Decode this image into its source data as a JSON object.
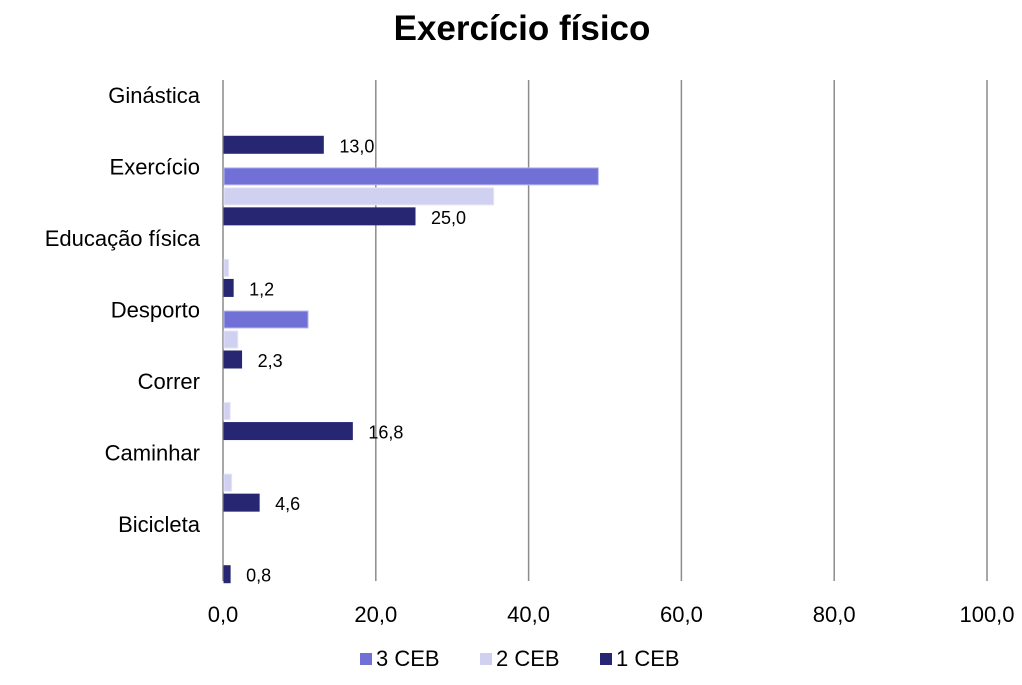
{
  "chart_data": {
    "type": "bar",
    "orientation": "horizontal",
    "title": "Exercício físico",
    "xlabel": "",
    "ylabel": "",
    "xlim": [
      0,
      100
    ],
    "x_ticks": [
      0,
      20,
      40,
      60,
      80,
      100
    ],
    "x_tick_labels": [
      "0,0",
      "20,0",
      "40,0",
      "60,0",
      "80,0",
      "100,0"
    ],
    "grid": true,
    "legend_position": "bottom",
    "categories": [
      "Ginástica",
      "Exercício",
      "Educação física",
      "Desporto",
      "Correr",
      "Caminhar",
      "Bicicleta"
    ],
    "series": [
      {
        "name": "3 CEB",
        "color": "#7070d6",
        "values": [
          0,
          49.0,
          0,
          11.0,
          0,
          0,
          0
        ]
      },
      {
        "name": "2 CEB",
        "color": "#d0d0f0",
        "values": [
          0,
          35.3,
          0.6,
          1.8,
          0.8,
          1.0,
          0
        ]
      },
      {
        "name": "1 CEB",
        "color": "#262672",
        "values": [
          13.0,
          25.0,
          1.2,
          2.3,
          16.8,
          4.6,
          0.8
        ],
        "data_labels": [
          "13,0",
          "25,0",
          "1,2",
          "2,3",
          "16,8",
          "4,6",
          "0,8"
        ]
      }
    ]
  }
}
